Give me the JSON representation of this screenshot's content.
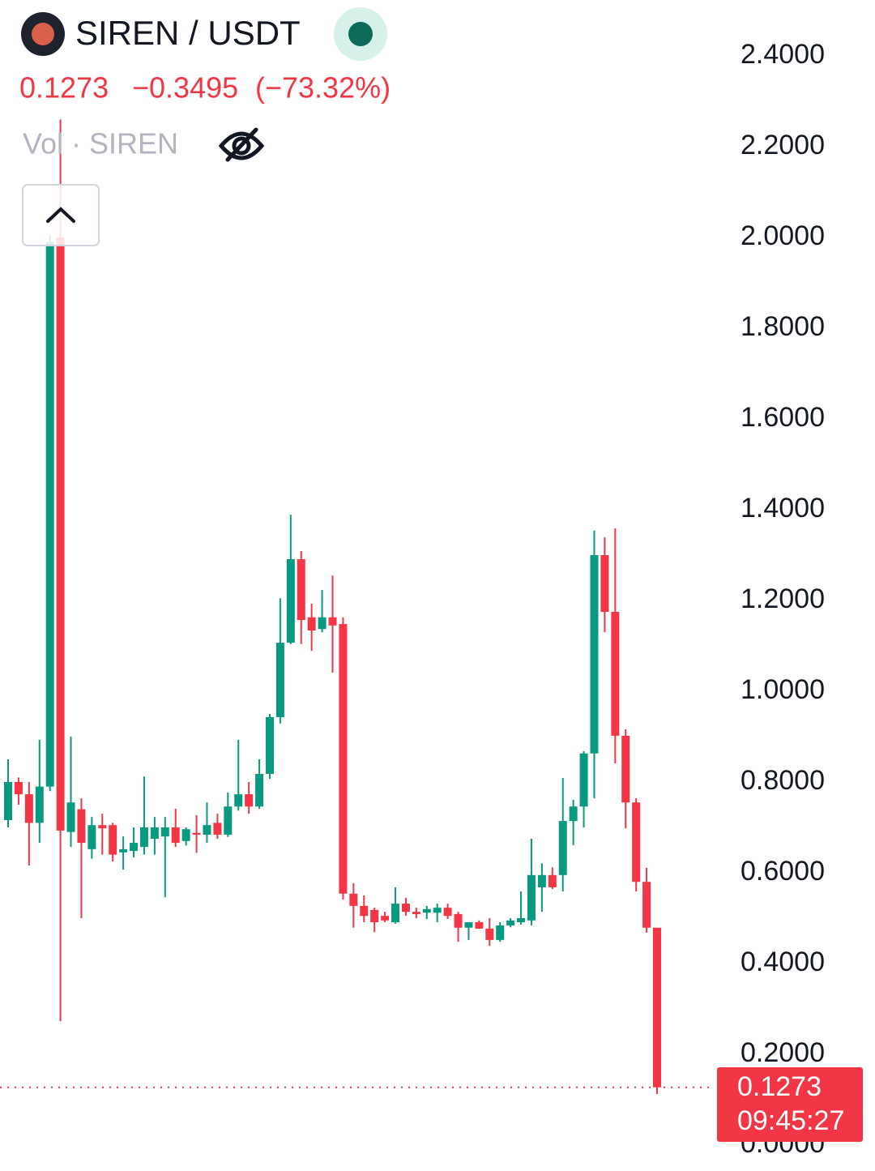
{
  "chart_data": {
    "type": "candlestick",
    "title": "SIREN / USDT",
    "last_price": 0.1273,
    "change": {
      "value": -0.3495,
      "label": "−0.3495"
    },
    "change_percent": {
      "value": -73.32,
      "label": "(−73.32%)"
    },
    "volume_label": "Vol · SIREN",
    "countdown": "09:45:27",
    "up_color": "#089981",
    "down_color": "#f23645",
    "open": [
      0.716,
      0.8,
      0.773,
      0.71,
      0.79,
      2.0,
      0.69,
      0.74,
      0.652,
      0.705,
      0.705,
      0.645,
      0.648,
      0.657,
      0.675,
      0.68,
      0.7,
      0.67,
      0.688,
      0.684,
      0.71,
      0.684,
      0.746,
      0.773,
      0.746,
      0.818,
      0.943,
      1.107,
      1.291,
      1.163,
      1.137,
      1.163,
      1.148,
      0.554,
      0.527,
      0.518,
      0.505,
      0.491,
      0.532,
      0.514,
      0.512,
      0.512,
      0.523,
      0.509,
      0.479,
      0.491,
      0.477,
      0.452,
      0.484,
      0.491,
      0.495,
      0.568,
      0.595,
      0.595,
      0.714,
      0.746,
      0.863,
      1.3,
      1.175,
      0.902,
      0.755,
      0.58,
      0.479
    ],
    "high": [
      0.85,
      0.81,
      0.8,
      0.893,
      2.005,
      2.26,
      0.9,
      0.764,
      0.723,
      0.73,
      0.71,
      0.68,
      0.7,
      0.812,
      0.723,
      0.723,
      0.741,
      0.7,
      0.727,
      0.755,
      0.73,
      0.777,
      0.893,
      0.8,
      0.85,
      0.95,
      1.205,
      1.389,
      1.309,
      1.193,
      1.223,
      1.255,
      1.163,
      0.577,
      0.55,
      0.523,
      0.514,
      0.568,
      0.545,
      0.523,
      0.527,
      0.532,
      0.532,
      0.514,
      0.489,
      0.495,
      0.5,
      0.491,
      0.5,
      0.559,
      0.675,
      0.621,
      0.612,
      0.809,
      0.761,
      0.868,
      1.354,
      1.339,
      1.359,
      0.916,
      0.764,
      0.611,
      0.4625
    ],
    "low": [
      0.7,
      0.75,
      0.616,
      0.666,
      0.78,
      0.273,
      0.657,
      0.5,
      0.631,
      0.64,
      0.625,
      0.607,
      0.634,
      0.64,
      0.64,
      0.546,
      0.657,
      0.66,
      0.644,
      0.666,
      0.675,
      0.679,
      0.737,
      0.73,
      0.741,
      0.807,
      0.929,
      1.104,
      1.104,
      1.089,
      1.13,
      1.041,
      0.541,
      0.479,
      0.491,
      0.469,
      0.491,
      0.488,
      0.505,
      0.5,
      0.498,
      0.491,
      0.498,
      0.448,
      0.452,
      0.477,
      0.439,
      0.448,
      0.48,
      0.486,
      0.484,
      0.514,
      0.564,
      0.559,
      0.661,
      0.7,
      0.764,
      1.13,
      0.841,
      0.698,
      0.559,
      0.468,
      0.1125
    ],
    "close": [
      0.8,
      0.773,
      0.71,
      0.79,
      1.99,
      0.693,
      0.755,
      0.666,
      0.705,
      0.698,
      0.64,
      0.652,
      0.666,
      0.7,
      0.7,
      0.7,
      0.666,
      0.696,
      0.684,
      0.705,
      0.684,
      0.746,
      0.773,
      0.746,
      0.818,
      0.943,
      1.107,
      1.291,
      1.157,
      1.134,
      1.163,
      1.145,
      0.554,
      0.527,
      0.505,
      0.491,
      0.495,
      0.532,
      0.514,
      0.509,
      0.52,
      0.523,
      0.505,
      0.479,
      0.491,
      0.477,
      0.452,
      0.484,
      0.495,
      0.5,
      0.595,
      0.595,
      0.568,
      0.714,
      0.746,
      0.863,
      1.3,
      1.175,
      0.902,
      0.755,
      0.58,
      0.479,
      0.1273
    ],
    "ylim": [
      0,
      2.4
    ],
    "yticks": [
      {
        "value": 0,
        "label": "0.0000"
      },
      {
        "value": 0.2,
        "label": "0.2000"
      },
      {
        "value": 0.4,
        "label": "0.4000"
      },
      {
        "value": 0.6,
        "label": "0.6000"
      },
      {
        "value": 0.8,
        "label": "0.8000"
      },
      {
        "value": 1.0,
        "label": "1.0000"
      },
      {
        "value": 1.2,
        "label": "1.2000"
      },
      {
        "value": 1.4,
        "label": "1.4000"
      },
      {
        "value": 1.6,
        "label": "1.6000"
      },
      {
        "value": 1.8,
        "label": "1.8000"
      },
      {
        "value": 2.0,
        "label": "2.0000"
      },
      {
        "value": 2.2,
        "label": "2.2000"
      },
      {
        "value": 2.4,
        "label": "2.4000"
      }
    ]
  }
}
